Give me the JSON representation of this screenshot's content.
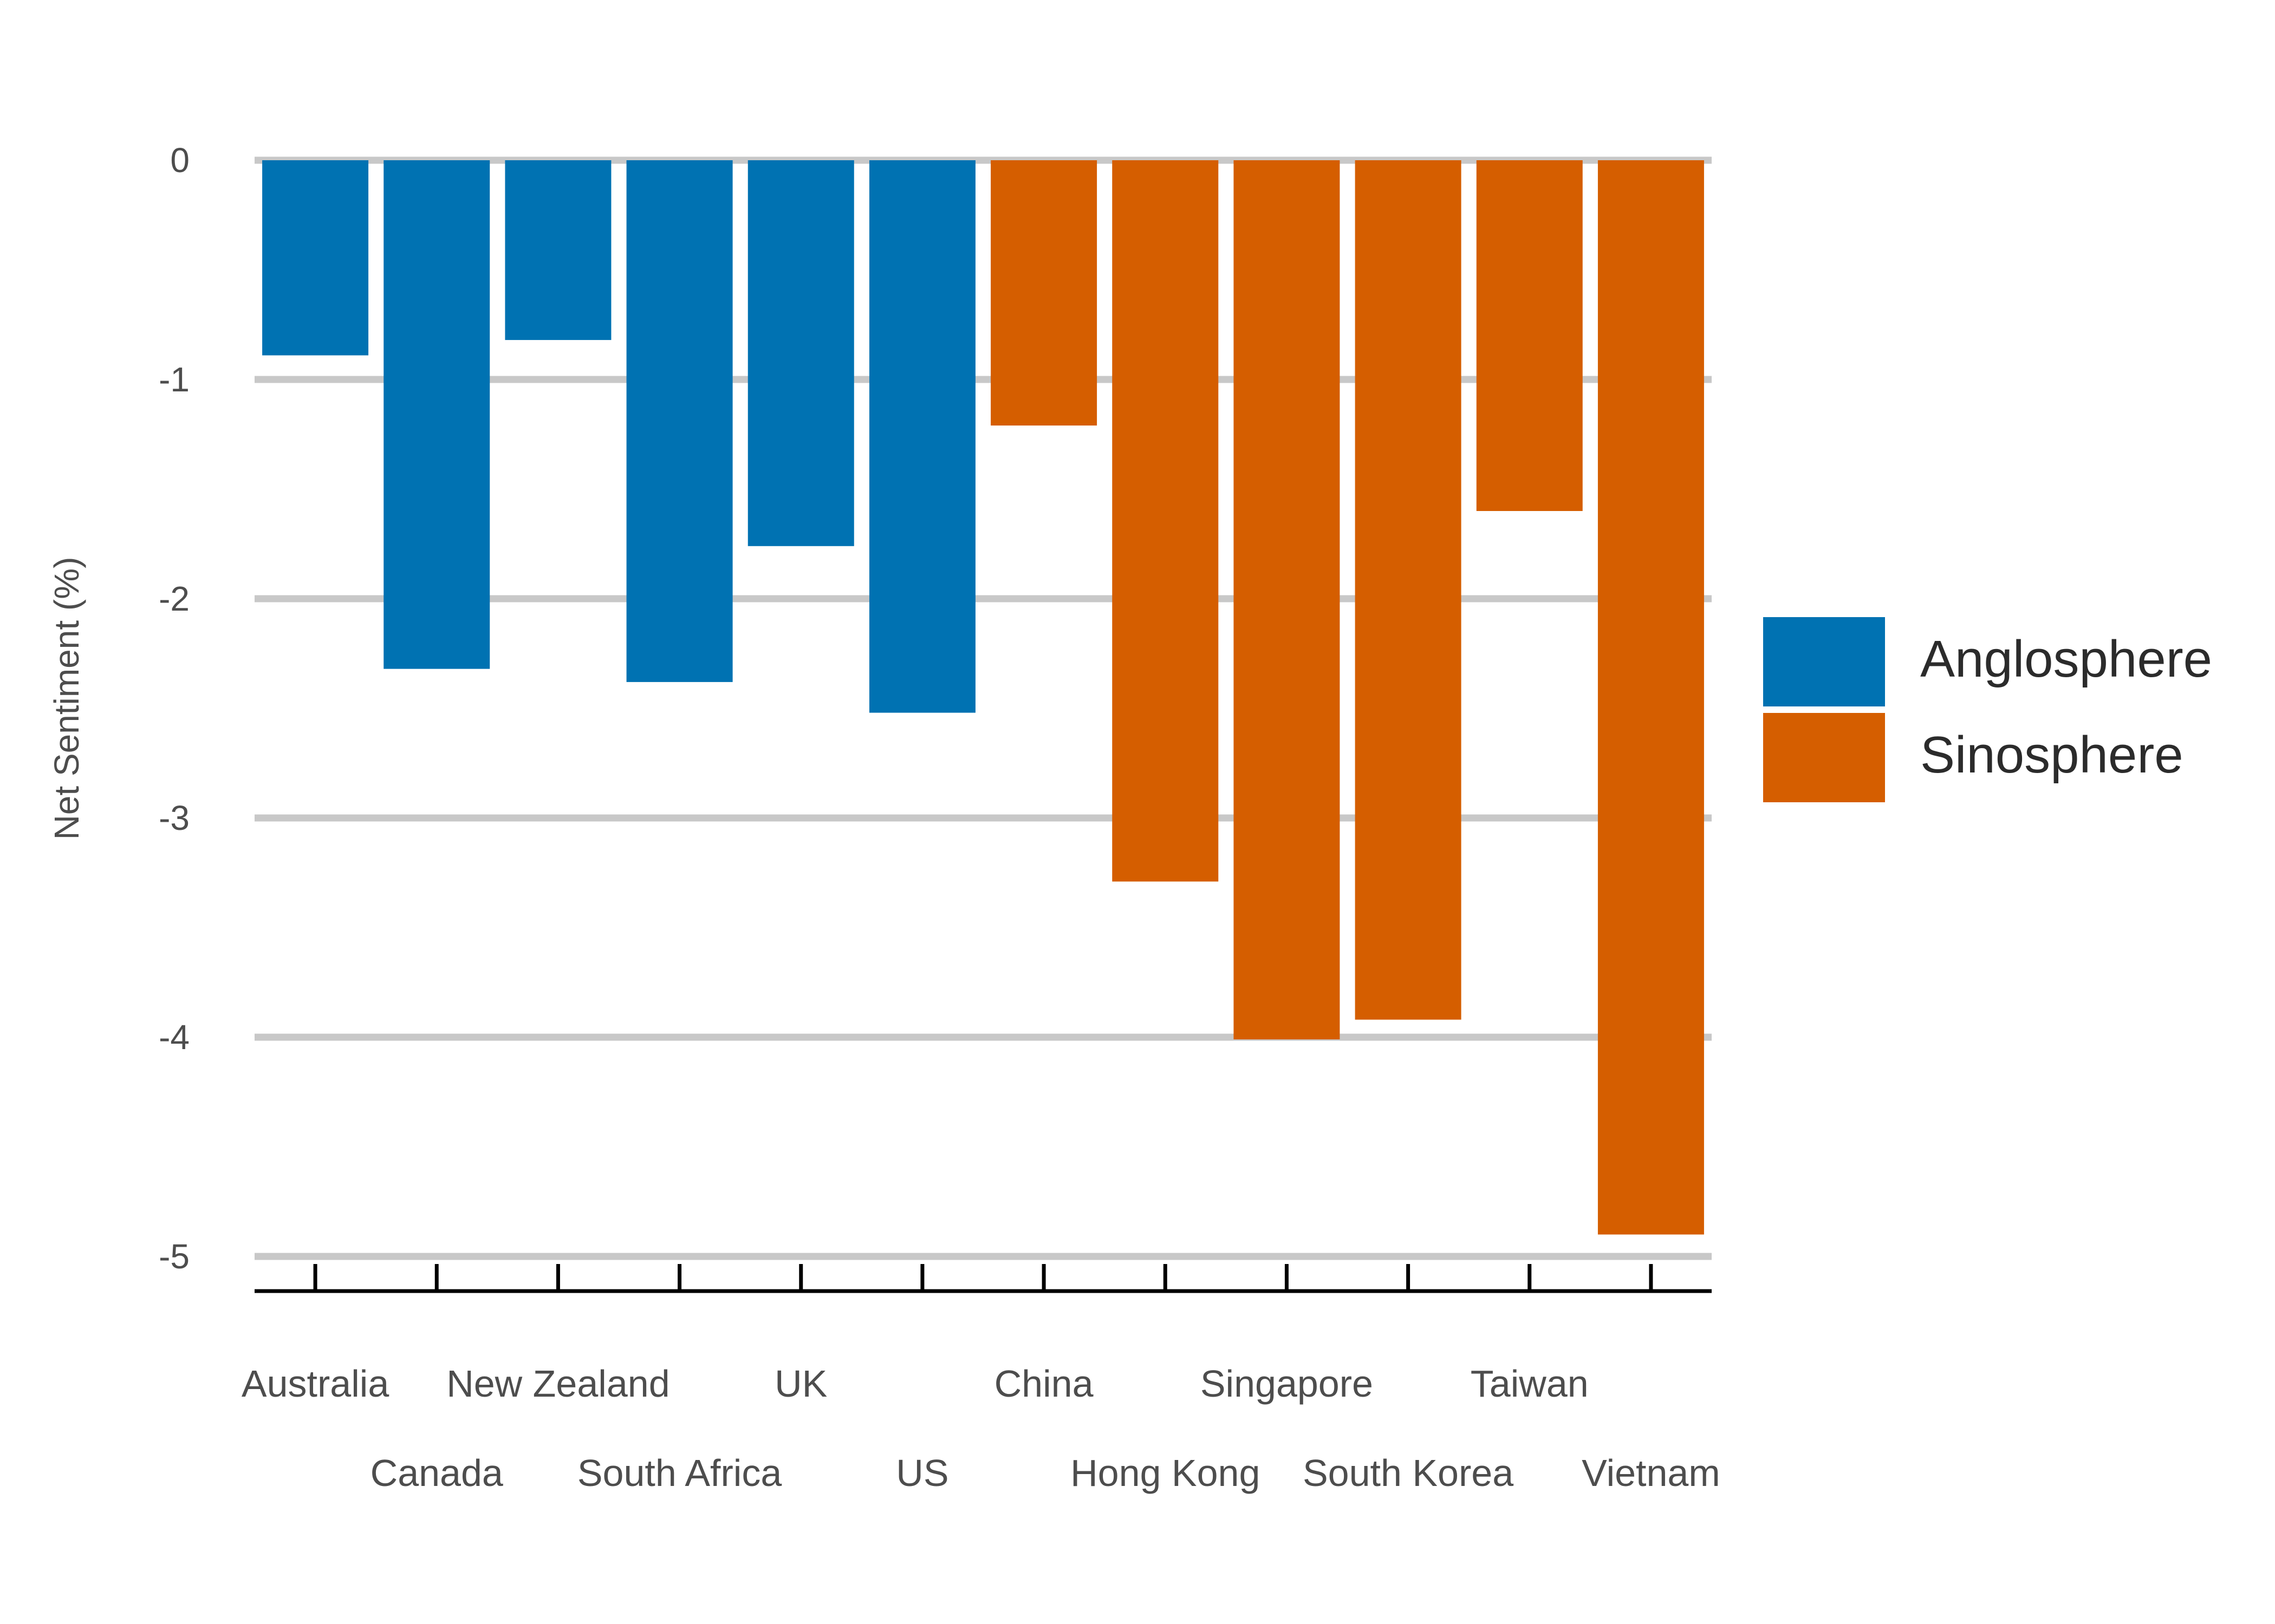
{
  "chart_data": {
    "type": "bar",
    "title": "",
    "xlabel": "",
    "ylabel": "Net Sentiment (%)",
    "ylim": [
      -5,
      0
    ],
    "yticks": [
      0,
      -1,
      -2,
      -3,
      -4,
      -5
    ],
    "grid": "horizontal",
    "legend_position": "right",
    "categories": [
      "Australia",
      "Canada",
      "New Zealand",
      "South Africa",
      "UK",
      "US",
      "China",
      "Hong Kong",
      "Singapore",
      "South Korea",
      "Taiwan",
      "Vietnam"
    ],
    "values": [
      -0.89,
      -2.32,
      -0.82,
      -2.38,
      -1.76,
      -2.52,
      -1.21,
      -3.29,
      -4.01,
      -3.92,
      -1.6,
      -4.9
    ],
    "groups": [
      "Anglosphere",
      "Anglosphere",
      "Anglosphere",
      "Anglosphere",
      "Anglosphere",
      "Anglosphere",
      "Sinosphere",
      "Sinosphere",
      "Sinosphere",
      "Sinosphere",
      "Sinosphere",
      "Sinosphere"
    ],
    "legend": [
      {
        "name": "Anglosphere",
        "color": "#0072B2"
      },
      {
        "name": "Sinosphere",
        "color": "#D55E00"
      }
    ]
  }
}
